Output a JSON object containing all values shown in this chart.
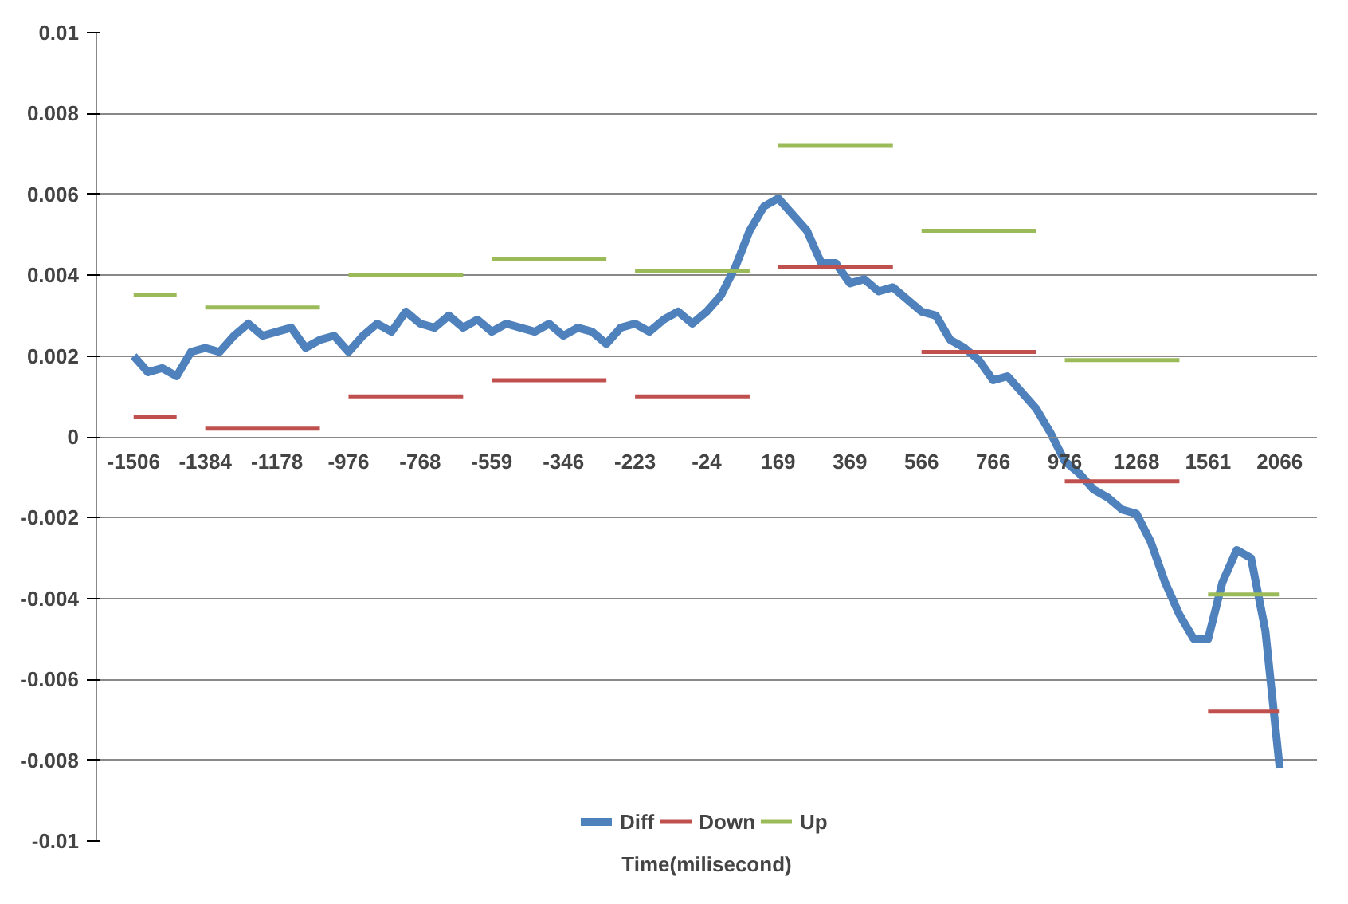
{
  "chart_data": {
    "type": "line",
    "xlabel": "Time(milisecond)",
    "categories": [
      "-1506",
      null,
      null,
      null,
      null,
      "-1384",
      null,
      null,
      null,
      null,
      "-1178",
      null,
      null,
      null,
      null,
      "-976",
      null,
      null,
      null,
      null,
      "-768",
      null,
      null,
      null,
      null,
      "-559",
      null,
      null,
      null,
      null,
      "-346",
      null,
      null,
      null,
      null,
      "-223",
      null,
      null,
      null,
      null,
      "-24",
      null,
      null,
      null,
      null,
      "169",
      null,
      null,
      null,
      null,
      "369",
      null,
      null,
      null,
      null,
      "566",
      null,
      null,
      null,
      null,
      "766",
      null,
      null,
      null,
      null,
      "976",
      null,
      null,
      null,
      null,
      "1268",
      null,
      null,
      null,
      null,
      "1561",
      null,
      null,
      null,
      null,
      "2066"
    ],
    "series": [
      {
        "name": "Diff",
        "color": "#4f81bd",
        "values": [
          0.002,
          0.0016,
          0.0017,
          0.0015,
          0.0021,
          0.0022,
          0.0021,
          0.0025,
          0.0028,
          0.0025,
          0.0026,
          0.0027,
          0.0022,
          0.0024,
          0.0025,
          0.0021,
          0.0025,
          0.0028,
          0.0026,
          0.0031,
          0.0028,
          0.0027,
          0.003,
          0.0027,
          0.0029,
          0.0026,
          0.0028,
          0.0027,
          0.0026,
          0.0028,
          0.0025,
          0.0027,
          0.0026,
          0.0023,
          0.0027,
          0.0028,
          0.0026,
          0.0029,
          0.0031,
          0.0028,
          0.0031,
          0.0035,
          0.0042,
          0.0051,
          0.0057,
          0.0059,
          0.0055,
          0.0051,
          0.0043,
          0.0043,
          0.0038,
          0.0039,
          0.0036,
          0.0037,
          0.0034,
          0.0031,
          0.003,
          0.0024,
          0.0022,
          0.0019,
          0.0014,
          0.0015,
          0.0011,
          0.0007,
          0.0001,
          -0.0006,
          -0.0009,
          -0.0013,
          -0.0015,
          -0.0018,
          -0.0019,
          -0.0026,
          -0.0036,
          -0.0044,
          -0.005,
          -0.005,
          -0.0036,
          -0.0028,
          -0.003,
          -0.0048,
          -0.0082
        ]
      },
      {
        "name": "Down",
        "color": "#c0504d",
        "values": [
          0.0005,
          0.0005,
          0.0005,
          0.0005,
          null,
          0.0002,
          0.0002,
          0.0002,
          0.0002,
          0.0002,
          0.0002,
          0.0002,
          0.0002,
          0.0002,
          null,
          0.001,
          0.001,
          0.001,
          0.001,
          0.001,
          0.001,
          0.001,
          0.001,
          0.001,
          null,
          0.0014,
          0.0014,
          0.0014,
          0.0014,
          0.0014,
          0.0014,
          0.0014,
          0.0014,
          0.0014,
          null,
          0.001,
          0.001,
          0.001,
          0.001,
          0.001,
          0.001,
          0.001,
          0.001,
          0.001,
          null,
          0.0042,
          0.0042,
          0.0042,
          0.0042,
          0.0042,
          0.0042,
          0.0042,
          0.0042,
          0.0042,
          null,
          0.0021,
          0.0021,
          0.0021,
          0.0021,
          0.0021,
          0.0021,
          0.0021,
          0.0021,
          0.0021,
          null,
          -0.0011,
          -0.0011,
          -0.0011,
          -0.0011,
          -0.0011,
          -0.0011,
          -0.0011,
          -0.0011,
          -0.0011,
          null,
          -0.0068,
          -0.0068,
          -0.0068,
          -0.0068,
          -0.0068,
          -0.0068
        ]
      },
      {
        "name": "Up",
        "color": "#9bbb59",
        "values": [
          0.0035,
          0.0035,
          0.0035,
          0.0035,
          null,
          0.0032,
          0.0032,
          0.0032,
          0.0032,
          0.0032,
          0.0032,
          0.0032,
          0.0032,
          0.0032,
          null,
          0.004,
          0.004,
          0.004,
          0.004,
          0.004,
          0.004,
          0.004,
          0.004,
          0.004,
          null,
          0.0044,
          0.0044,
          0.0044,
          0.0044,
          0.0044,
          0.0044,
          0.0044,
          0.0044,
          0.0044,
          null,
          0.0041,
          0.0041,
          0.0041,
          0.0041,
          0.0041,
          0.0041,
          0.0041,
          0.0041,
          0.0041,
          null,
          0.0072,
          0.0072,
          0.0072,
          0.0072,
          0.0072,
          0.0072,
          0.0072,
          0.0072,
          0.0072,
          null,
          0.0051,
          0.0051,
          0.0051,
          0.0051,
          0.0051,
          0.0051,
          0.0051,
          0.0051,
          0.0051,
          null,
          0.0019,
          0.0019,
          0.0019,
          0.0019,
          0.0019,
          0.0019,
          0.0019,
          0.0019,
          0.0019,
          null,
          -0.0039,
          -0.0039,
          -0.0039,
          -0.0039,
          -0.0039,
          -0.0039
        ]
      }
    ],
    "ylim": [
      -0.01,
      0.01
    ],
    "yticks": [
      -0.01,
      -0.008,
      -0.006,
      -0.004,
      -0.002,
      0,
      0.002,
      0.004,
      0.006,
      0.008,
      0.01
    ],
    "grid": "y",
    "legend": "bottom",
    "marker": "none",
    "line_style": "solid"
  }
}
